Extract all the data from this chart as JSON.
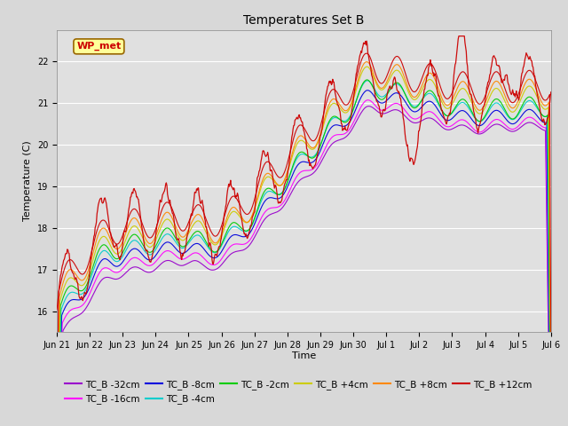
{
  "title": "Temperatures Set B",
  "ylabel": "Temperature (C)",
  "xlabel": "Time",
  "ylim": [
    15.5,
    22.75
  ],
  "background_color": "#d8d8d8",
  "plot_bg_color": "#e0e0e0",
  "wp_met_label": "WP_met",
  "wp_met_color": "#cc0000",
  "wp_met_bg": "#ffff99",
  "legend_entries": [
    {
      "label": "TC_B -32cm",
      "color": "#9900cc"
    },
    {
      "label": "TC_B -16cm",
      "color": "#ff00ff"
    },
    {
      "label": "TC_B -8cm",
      "color": "#0000dd"
    },
    {
      "label": "TC_B -4cm",
      "color": "#00cccc"
    },
    {
      "label": "TC_B -2cm",
      "color": "#00cc00"
    },
    {
      "label": "TC_B +4cm",
      "color": "#cccc00"
    },
    {
      "label": "TC_B +8cm",
      "color": "#ff8800"
    },
    {
      "label": "TC_B +12cm",
      "color": "#cc0000"
    }
  ],
  "x_tick_labels": [
    "Jun 21",
    "Jun 22",
    "Jun 23",
    "Jun 24",
    "Jun 25",
    "Jun 26",
    "Jun 27",
    "Jun 28",
    "Jun 29",
    "Jun 30",
    "Jul 1",
    "Jul 2",
    "Jul 3",
    "Jul 4",
    "Jul 5",
    "Jul 6"
  ],
  "n_points": 800,
  "seed": 42
}
